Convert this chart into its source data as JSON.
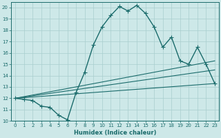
{
  "xlabel": "Humidex (Indice chaleur)",
  "bg_color": "#cde8e8",
  "grid_color": "#a8cece",
  "line_color": "#1a6b6b",
  "xlim": [
    -0.5,
    23.5
  ],
  "ylim": [
    10,
    20.5
  ],
  "x_ticks": [
    0,
    1,
    2,
    3,
    4,
    5,
    6,
    7,
    8,
    9,
    10,
    11,
    12,
    13,
    14,
    15,
    16,
    17,
    18,
    19,
    20,
    21,
    22,
    23
  ],
  "y_ticks": [
    10,
    11,
    12,
    13,
    14,
    15,
    16,
    17,
    18,
    19,
    20
  ],
  "series1_x": [
    0,
    1,
    2,
    3,
    4,
    5,
    6,
    7,
    8,
    9,
    10,
    11,
    12,
    13,
    14,
    15,
    16,
    17,
    18,
    19,
    20,
    21,
    22,
    23
  ],
  "series1_y": [
    12.0,
    11.9,
    11.8,
    11.3,
    11.2,
    10.5,
    10.1,
    12.5,
    14.3,
    16.7,
    18.3,
    19.3,
    20.1,
    19.7,
    20.2,
    19.5,
    18.3,
    16.5,
    17.4,
    15.3,
    15.0,
    16.5,
    15.0,
    13.3
  ],
  "series2_x": [
    0,
    23
  ],
  "series2_y": [
    12.0,
    15.3
  ],
  "series3_x": [
    0,
    23
  ],
  "series3_y": [
    12.0,
    14.5
  ],
  "series4_x": [
    0,
    23
  ],
  "series4_y": [
    12.0,
    13.3
  ]
}
